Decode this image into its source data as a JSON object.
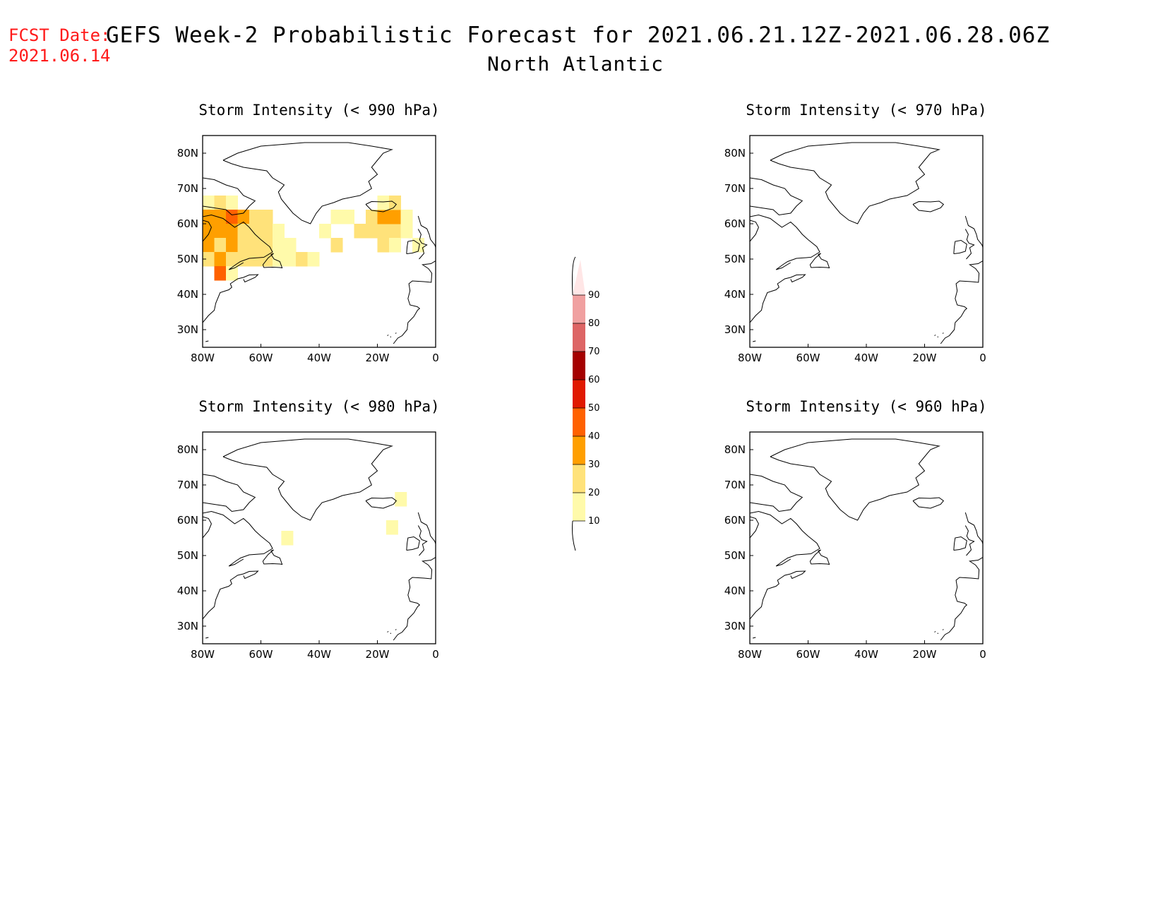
{
  "fcst_date": {
    "label": "FCST Date:",
    "value": "2021.06.14"
  },
  "title": "GEFS Week-2 Probabilistic Forecast for 2021.06.21.12Z-2021.06.28.06Z",
  "subtitle": "North Atlantic",
  "map": {
    "lon_range": [
      -80,
      0
    ],
    "lat_range": [
      25,
      85
    ],
    "x_ticks": [
      "80W",
      "60W",
      "40W",
      "20W",
      "0"
    ],
    "y_ticks": [
      "30N",
      "40N",
      "50N",
      "60N",
      "70N",
      "80N"
    ]
  },
  "colorbar": {
    "levels": [
      "10",
      "20",
      "30",
      "40",
      "50",
      "60",
      "70",
      "80",
      "90"
    ],
    "colors": [
      "#fffaaa",
      "#ffe27a",
      "#ff9f00",
      "#ff6100",
      "#e01900",
      "#a50000",
      "#dd6565",
      "#f0a0a0",
      "#ffe6e6"
    ]
  },
  "chart_data": [
    {
      "type": "heatmap",
      "title": "Storm Intensity (< 990 hPa)",
      "cells": [
        {
          "lon": -78,
          "lat": 66,
          "p": 15
        },
        {
          "lon": -74,
          "lat": 66,
          "p": 20
        },
        {
          "lon": -70,
          "lat": 66,
          "p": 15
        },
        {
          "lon": -78,
          "lat": 62,
          "p": 30
        },
        {
          "lon": -74,
          "lat": 62,
          "p": 35
        },
        {
          "lon": -70,
          "lat": 62,
          "p": 40
        },
        {
          "lon": -66,
          "lat": 62,
          "p": 30
        },
        {
          "lon": -62,
          "lat": 62,
          "p": 25
        },
        {
          "lon": -58,
          "lat": 62,
          "p": 20
        },
        {
          "lon": -78,
          "lat": 58,
          "p": 35
        },
        {
          "lon": -74,
          "lat": 58,
          "p": 30
        },
        {
          "lon": -70,
          "lat": 58,
          "p": 30
        },
        {
          "lon": -66,
          "lat": 58,
          "p": 25
        },
        {
          "lon": -62,
          "lat": 58,
          "p": 20
        },
        {
          "lon": -58,
          "lat": 58,
          "p": 20
        },
        {
          "lon": -54,
          "lat": 58,
          "p": 15
        },
        {
          "lon": -78,
          "lat": 54,
          "p": 30
        },
        {
          "lon": -74,
          "lat": 54,
          "p": 25
        },
        {
          "lon": -70,
          "lat": 54,
          "p": 35
        },
        {
          "lon": -66,
          "lat": 54,
          "p": 25
        },
        {
          "lon": -62,
          "lat": 54,
          "p": 20
        },
        {
          "lon": -58,
          "lat": 54,
          "p": 25
        },
        {
          "lon": -54,
          "lat": 54,
          "p": 15
        },
        {
          "lon": -50,
          "lat": 54,
          "p": 15
        },
        {
          "lon": -78,
          "lat": 50,
          "p": 25
        },
        {
          "lon": -74,
          "lat": 50,
          "p": 30
        },
        {
          "lon": -70,
          "lat": 50,
          "p": 20
        },
        {
          "lon": -66,
          "lat": 50,
          "p": 25
        },
        {
          "lon": -62,
          "lat": 50,
          "p": 20
        },
        {
          "lon": -58,
          "lat": 50,
          "p": 20
        },
        {
          "lon": -54,
          "lat": 50,
          "p": 15
        },
        {
          "lon": -50,
          "lat": 50,
          "p": 15
        },
        {
          "lon": -46,
          "lat": 50,
          "p": 20
        },
        {
          "lon": -42,
          "lat": 50,
          "p": 15
        },
        {
          "lon": -74,
          "lat": 46,
          "p": 40
        },
        {
          "lon": -70,
          "lat": 46,
          "p": 15
        },
        {
          "lon": -34,
          "lat": 54,
          "p": 25
        },
        {
          "lon": -38,
          "lat": 58,
          "p": 15
        },
        {
          "lon": -34,
          "lat": 62,
          "p": 15
        },
        {
          "lon": -30,
          "lat": 62,
          "p": 15
        },
        {
          "lon": -26,
          "lat": 58,
          "p": 20
        },
        {
          "lon": -22,
          "lat": 58,
          "p": 25
        },
        {
          "lon": -18,
          "lat": 58,
          "p": 25
        },
        {
          "lon": -14,
          "lat": 58,
          "p": 20
        },
        {
          "lon": -10,
          "lat": 58,
          "p": 15
        },
        {
          "lon": -22,
          "lat": 62,
          "p": 25
        },
        {
          "lon": -18,
          "lat": 62,
          "p": 30
        },
        {
          "lon": -14,
          "lat": 62,
          "p": 35
        },
        {
          "lon": -10,
          "lat": 62,
          "p": 15
        },
        {
          "lon": -18,
          "lat": 66,
          "p": 15
        },
        {
          "lon": -14,
          "lat": 66,
          "p": 20
        },
        {
          "lon": -18,
          "lat": 54,
          "p": 20
        },
        {
          "lon": -14,
          "lat": 54,
          "p": 15
        },
        {
          "lon": -6,
          "lat": 54,
          "p": 15
        }
      ]
    },
    {
      "type": "heatmap",
      "title": "Storm Intensity (< 970 hPa)",
      "cells": []
    },
    {
      "type": "heatmap",
      "title": "Storm Intensity (< 980 hPa)",
      "cells": [
        {
          "lon": -12,
          "lat": 66,
          "p": 15
        },
        {
          "lon": -15,
          "lat": 58,
          "p": 15
        },
        {
          "lon": -51,
          "lat": 55,
          "p": 15
        }
      ]
    },
    {
      "type": "heatmap",
      "title": "Storm Intensity (< 960 hPa)",
      "cells": []
    }
  ]
}
